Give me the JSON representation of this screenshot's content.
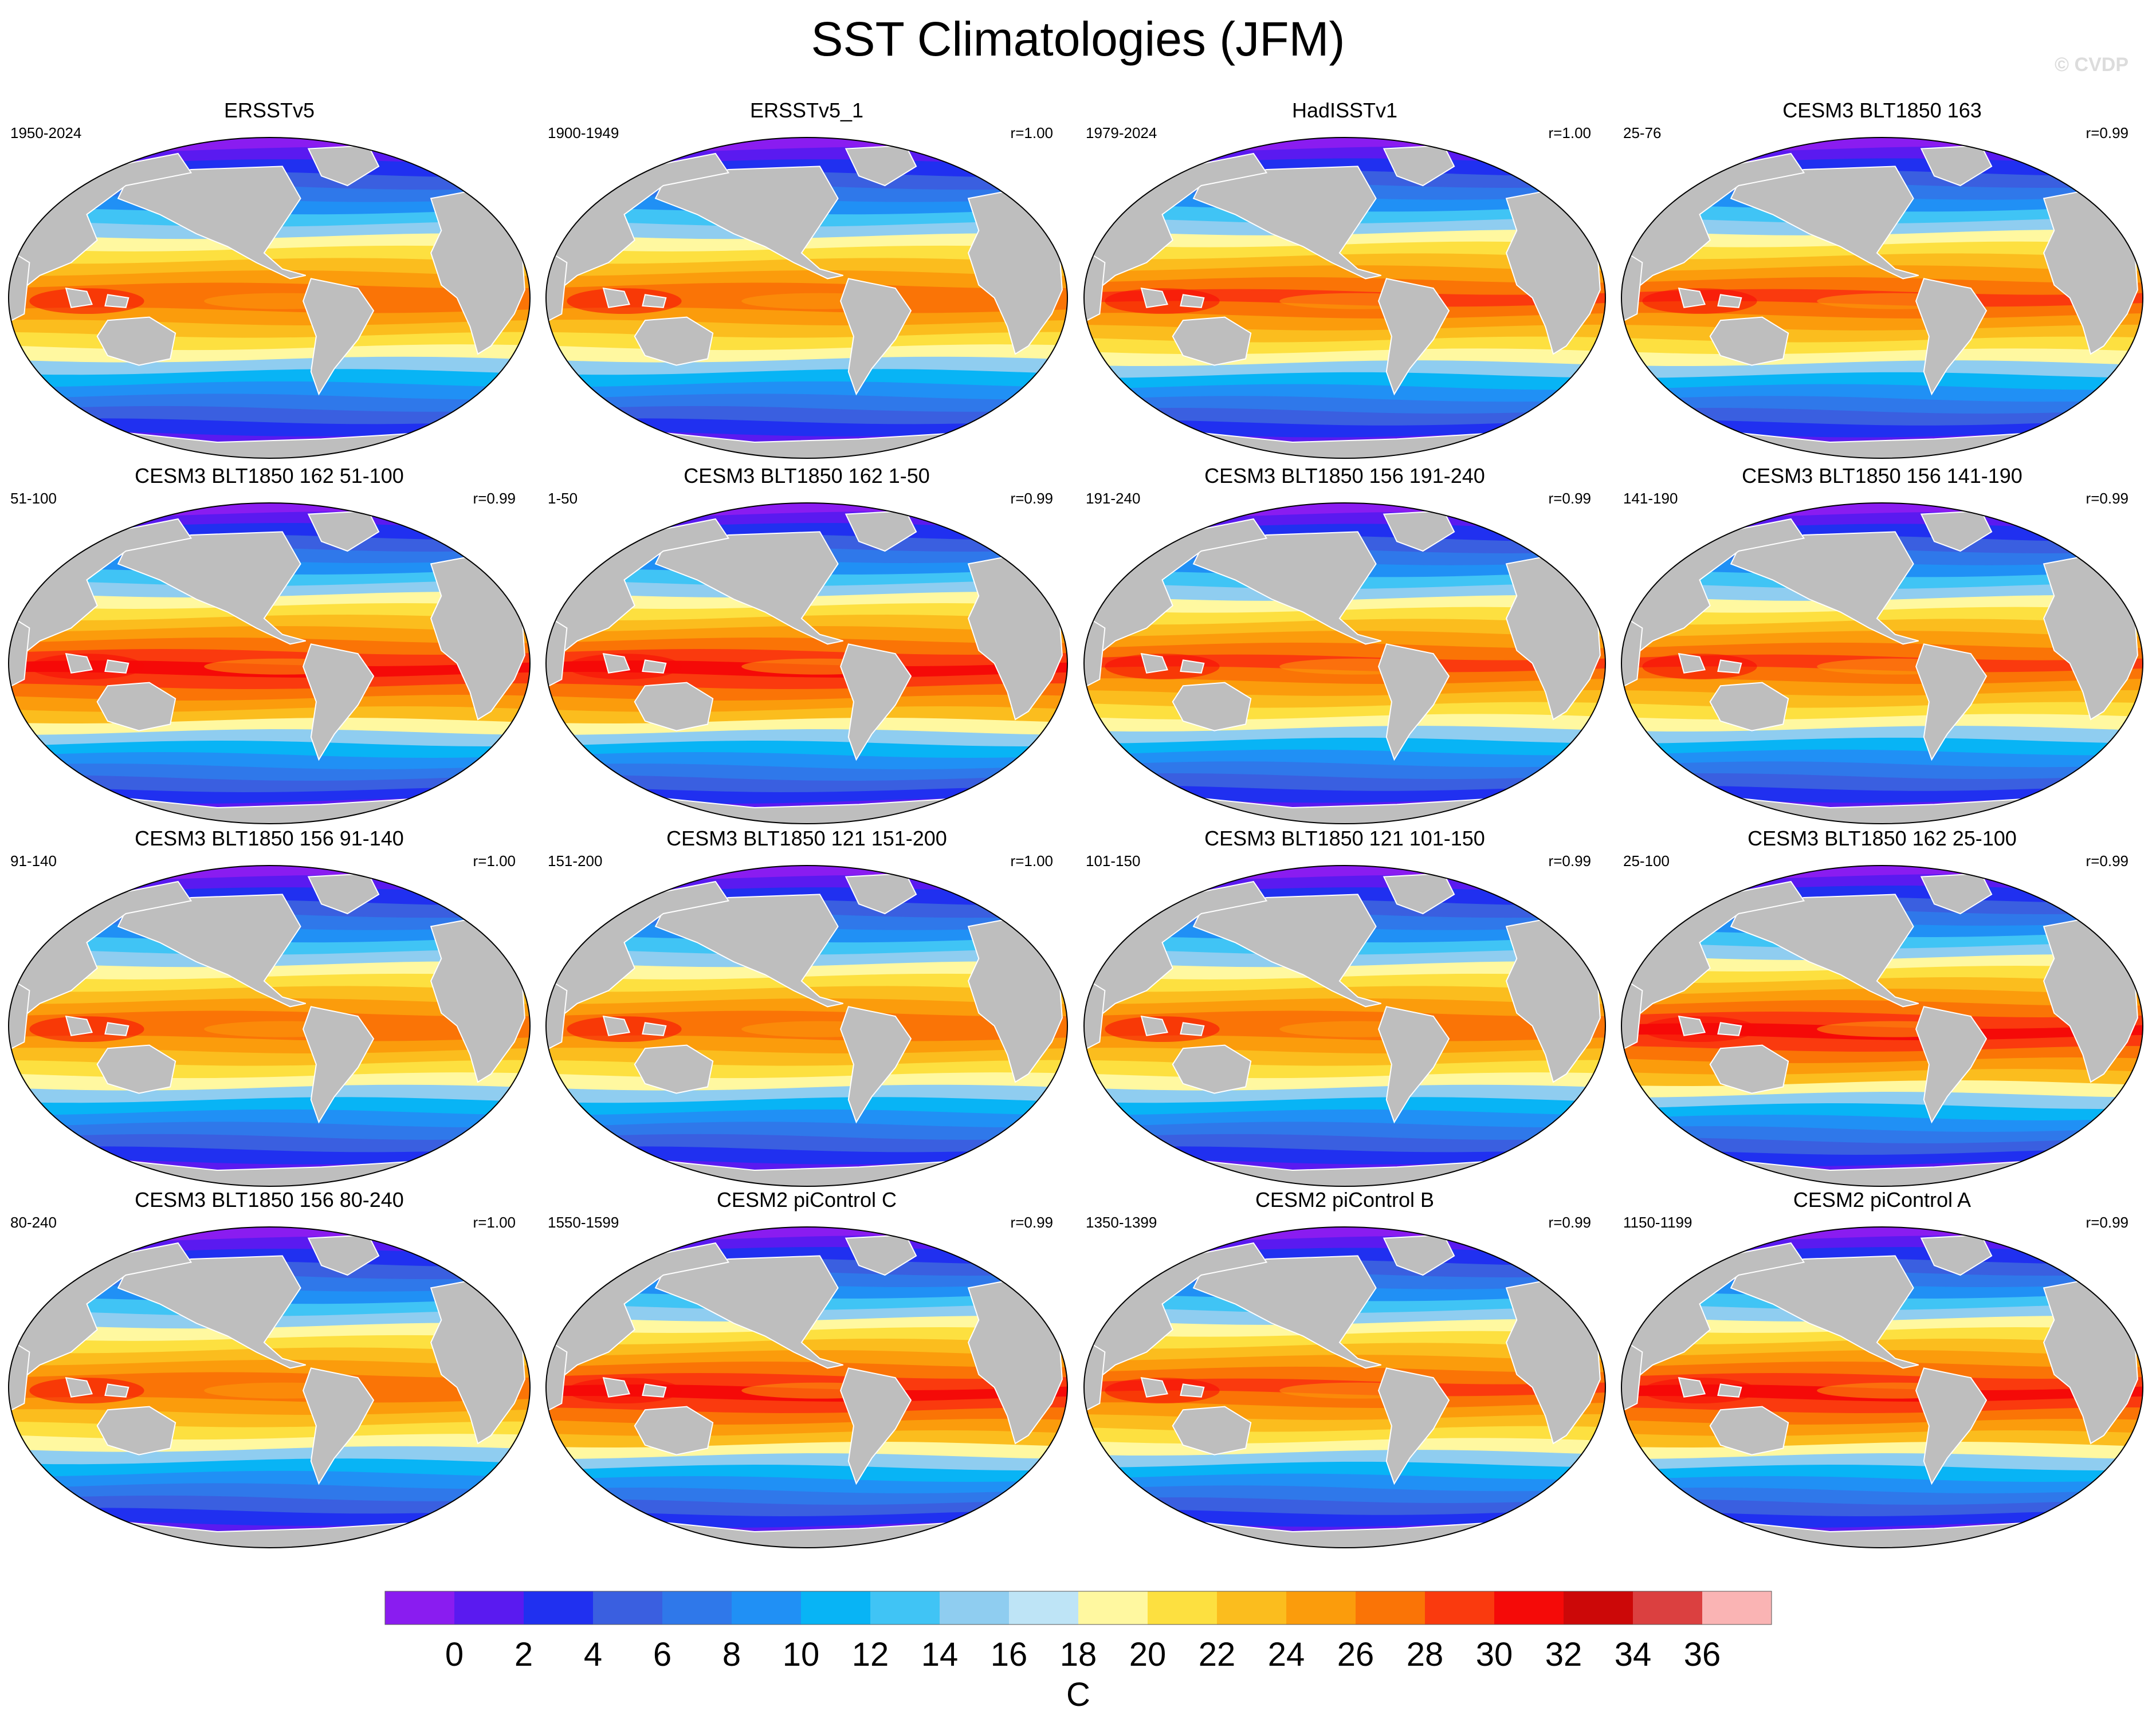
{
  "title": "SST Climatologies (JFM)",
  "watermark": "© CVDP",
  "chart_data": {
    "type": "heatmap",
    "projection": "robinson",
    "title": "SST Climatologies (JFM)",
    "units": "C",
    "colorbar": {
      "ticks": [
        "0",
        "2",
        "4",
        "6",
        "8",
        "10",
        "12",
        "14",
        "16",
        "18",
        "20",
        "22",
        "24",
        "26",
        "28",
        "30",
        "32",
        "34",
        "36"
      ],
      "label": "C",
      "colors": [
        "#8a1cf0",
        "#5a1af0",
        "#2030f0",
        "#3a5fe0",
        "#2f78ea",
        "#2090f5",
        "#08b4f5",
        "#40c4f5",
        "#8fcdf0",
        "#bee4f6",
        "#fff8a0",
        "#fde040",
        "#fbbd1e",
        "#fb9c0c",
        "#fa7406",
        "#fa3a0e",
        "#f50a08",
        "#cc0808",
        "#db4040",
        "#fab4b4"
      ]
    },
    "panels": [
      {
        "title": "ERSSTv5",
        "years": "1950-2024",
        "r": "",
        "variant": 0
      },
      {
        "title": "ERSSTv5_1",
        "years": "1900-1949",
        "r": "r=1.00",
        "variant": 0
      },
      {
        "title": "HadISSTv1",
        "years": "1979-2024",
        "r": "r=1.00",
        "variant": 1
      },
      {
        "title": "CESM3 BLT1850 163",
        "years": "25-76",
        "r": "r=0.99",
        "variant": 1
      },
      {
        "title": "CESM3 BLT1850 162 51-100",
        "years": "51-100",
        "r": "r=0.99",
        "variant": 2
      },
      {
        "title": "CESM3 BLT1850 162 1-50",
        "years": "1-50",
        "r": "r=0.99",
        "variant": 2
      },
      {
        "title": "CESM3 BLT1850 156 191-240",
        "years": "191-240",
        "r": "r=0.99",
        "variant": 1
      },
      {
        "title": "CESM3 BLT1850 156 141-190",
        "years": "141-190",
        "r": "r=0.99",
        "variant": 1
      },
      {
        "title": "CESM3 BLT1850 156 91-140",
        "years": "91-140",
        "r": "r=1.00",
        "variant": 0
      },
      {
        "title": "CESM3 BLT1850 121 151-200",
        "years": "151-200",
        "r": "r=1.00",
        "variant": 0
      },
      {
        "title": "CESM3 BLT1850 121 101-150",
        "years": "101-150",
        "r": "r=0.99",
        "variant": 0
      },
      {
        "title": "CESM3 BLT1850 162 25-100",
        "years": "25-100",
        "r": "r=0.99",
        "variant": 2
      },
      {
        "title": "CESM3 BLT1850 156 80-240",
        "years": "80-240",
        "r": "r=1.00",
        "variant": 0
      },
      {
        "title": "CESM2 piControl C",
        "years": "1550-1599",
        "r": "r=0.99",
        "variant": 2
      },
      {
        "title": "CESM2 piControl B",
        "years": "1350-1399",
        "r": "r=0.99",
        "variant": 1
      },
      {
        "title": "CESM2 piControl A",
        "years": "1150-1199",
        "r": "r=0.99",
        "variant": 2
      }
    ]
  }
}
